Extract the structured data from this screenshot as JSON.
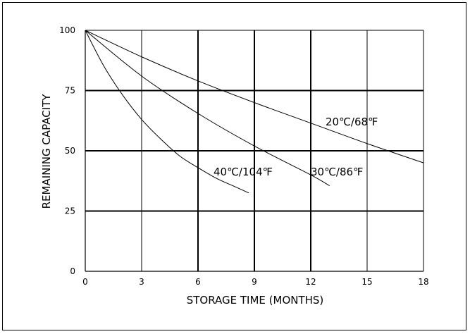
{
  "chart_data": {
    "type": "line",
    "xlabel": "STORAGE TIME (MONTHS)",
    "ylabel": "REMAINING CAPACITY",
    "xlim": [
      0,
      18
    ],
    "ylim": [
      0,
      100
    ],
    "x_ticks": [
      "0",
      "3",
      "6",
      "9",
      "12",
      "15",
      "18"
    ],
    "y_ticks": [
      "0",
      "25",
      "50",
      "75",
      "100"
    ],
    "grid": true,
    "series": [
      {
        "name": "20℃/68℉",
        "x": [
          0,
          3,
          6,
          9,
          12,
          15,
          18
        ],
        "values": [
          100,
          89,
          79,
          70,
          61.5,
          53,
          45
        ]
      },
      {
        "name": "30℃/86℉",
        "x": [
          0,
          3,
          6,
          9,
          12,
          13
        ],
        "values": [
          100,
          81,
          65.5,
          52,
          40,
          35.5
        ]
      },
      {
        "name": "40℃/104℉",
        "x": [
          0,
          1,
          2,
          3,
          4,
          5,
          6,
          7,
          8,
          8.7
        ],
        "values": [
          100,
          85,
          73,
          63,
          55,
          48,
          43,
          38.5,
          35,
          32.5
        ]
      }
    ]
  }
}
